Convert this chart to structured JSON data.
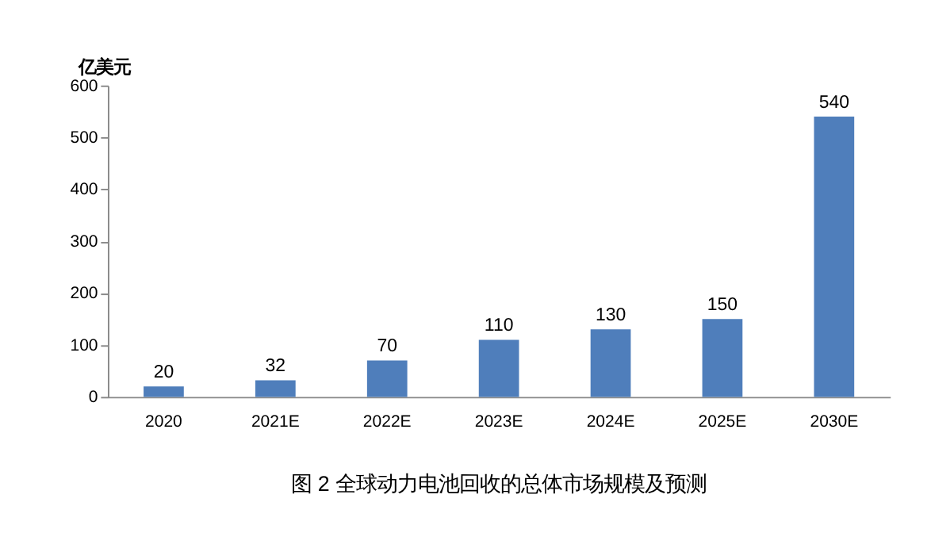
{
  "chart_data": {
    "type": "bar",
    "title": "图 2  全球动力电池回收的总体市场规模及预测",
    "ylabel": "亿美元",
    "categories": [
      "2020",
      "2021E",
      "2022E",
      "2023E",
      "2024E",
      "2025E",
      "2030E"
    ],
    "values": [
      20,
      32,
      70,
      110,
      130,
      150,
      540
    ],
    "color": "#4f7ebb",
    "ylim": [
      0,
      600
    ],
    "yticks": [
      0,
      100,
      200,
      300,
      400,
      500,
      600
    ],
    "grid": false,
    "data_labels": true
  }
}
